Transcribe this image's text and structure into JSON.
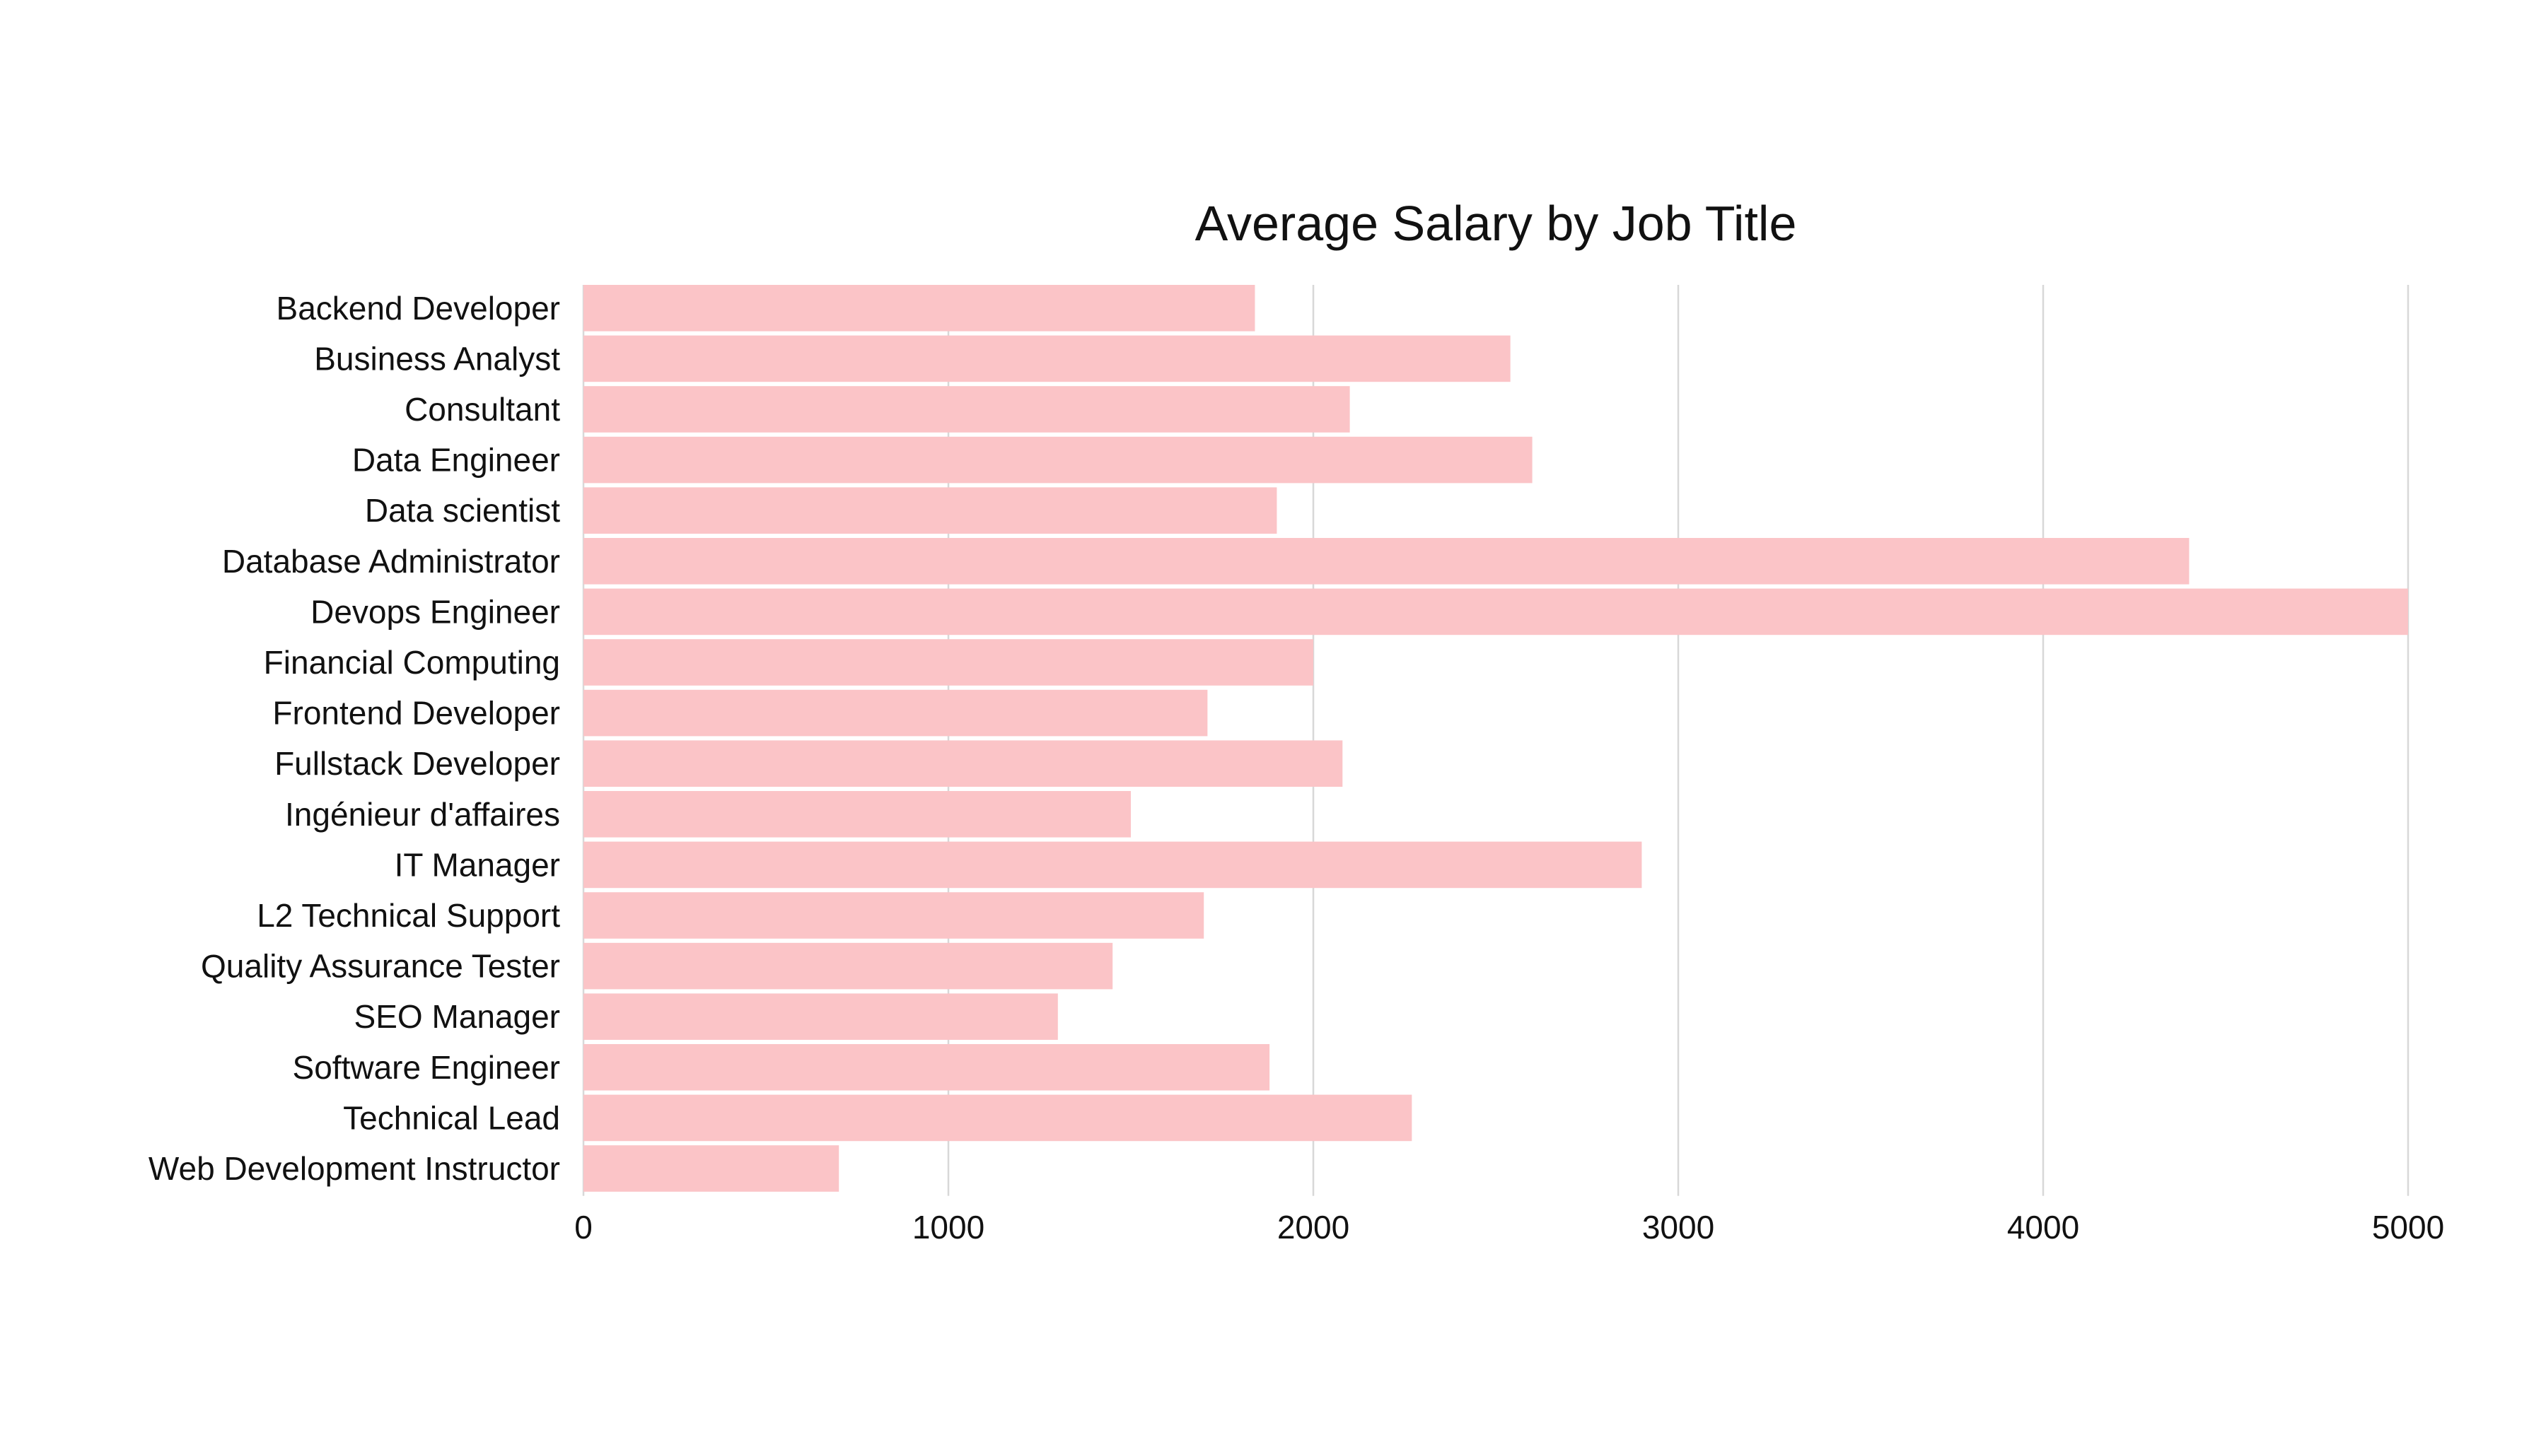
{
  "chart_data": {
    "type": "bar",
    "orientation": "horizontal",
    "title": "Average Salary by Job Title",
    "xlabel": "",
    "ylabel": "",
    "xlim": [
      0,
      5000
    ],
    "x_ticks": [
      "0",
      "1000",
      "2000",
      "3000",
      "4000",
      "5000"
    ],
    "grid": true,
    "legend": "none",
    "bar_color": "#fbc4c7",
    "categories": [
      "Backend Developer",
      "Business Analyst",
      "Consultant",
      "Data Engineer",
      "Data scientist",
      "Database Administrator",
      "Devops Engineer",
      "Financial Computing",
      "Frontend Developer",
      "Fullstack Developer",
      "Ingénieur d'affaires",
      "IT Manager",
      "L2 Technical Support",
      "Quality Assurance Tester",
      "SEO Manager",
      "Software Engineer",
      "Technical Lead",
      "Web Development Instructor"
    ],
    "values": [
      1840,
      2540,
      2100,
      2600,
      1900,
      4400,
      5000,
      2000,
      1710,
      2080,
      1500,
      2900,
      1700,
      1450,
      1300,
      1880,
      2270,
      700
    ]
  }
}
